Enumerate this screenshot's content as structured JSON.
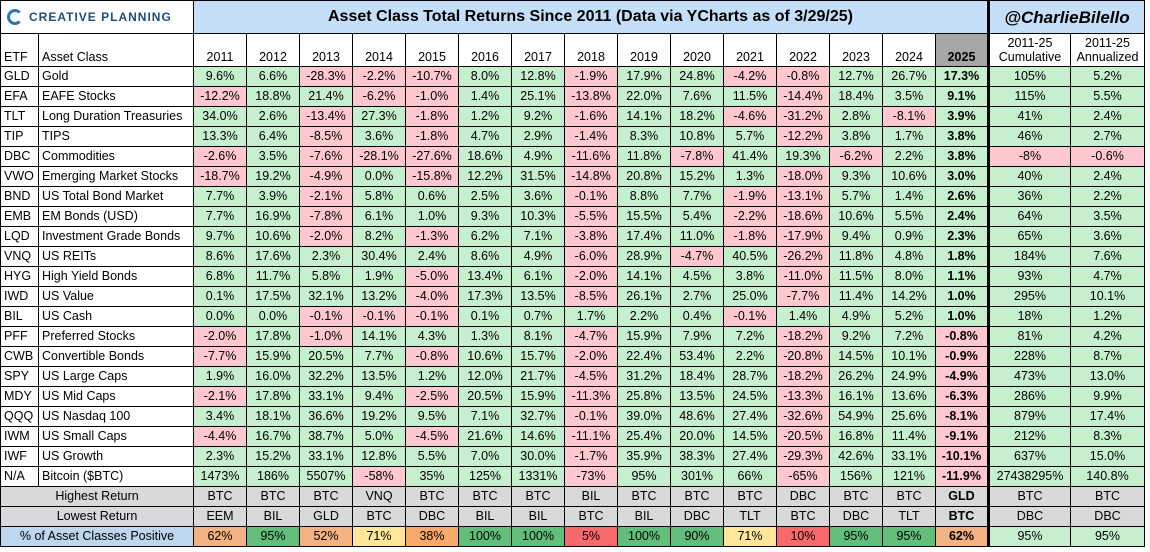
{
  "logo_text": "CREATIVE PLANNING",
  "title": "Asset Class Total Returns Since 2011 (Data via YCharts as of 3/29/25)",
  "handle": "@CharlieBilello",
  "headers": {
    "etf": "ETF",
    "asset_class": "Asset Class",
    "years": [
      "2011",
      "2012",
      "2013",
      "2014",
      "2015",
      "2016",
      "2017",
      "2018",
      "2019",
      "2020",
      "2021",
      "2022",
      "2023",
      "2024",
      "2025"
    ],
    "cumulative": [
      "2011-25",
      "Cumulative"
    ],
    "annualized": [
      "2011-25",
      "Annualized"
    ]
  },
  "chart_data": {
    "type": "table",
    "title": "Asset Class Total Returns Since 2011 (Data via YCharts as of 3/29/25)",
    "columns": [
      "ETF",
      "Asset Class",
      "2011",
      "2012",
      "2013",
      "2014",
      "2015",
      "2016",
      "2017",
      "2018",
      "2019",
      "2020",
      "2021",
      "2022",
      "2023",
      "2024",
      "2025",
      "2011-25 Cumulative",
      "2011-25 Annualized"
    ],
    "rows": [
      [
        "GLD",
        "Gold",
        "9.6%",
        "6.6%",
        "-28.3%",
        "-2.2%",
        "-10.7%",
        "8.0%",
        "12.8%",
        "-1.9%",
        "17.9%",
        "24.8%",
        "-4.2%",
        "-0.8%",
        "12.7%",
        "26.7%",
        "17.3%",
        "105%",
        "5.2%"
      ],
      [
        "EFA",
        "EAFE Stocks",
        "-12.2%",
        "18.8%",
        "21.4%",
        "-6.2%",
        "-1.0%",
        "1.4%",
        "25.1%",
        "-13.8%",
        "22.0%",
        "7.6%",
        "11.5%",
        "-14.4%",
        "18.4%",
        "3.5%",
        "9.1%",
        "115%",
        "5.5%"
      ],
      [
        "TLT",
        "Long Duration Treasuries",
        "34.0%",
        "2.6%",
        "-13.4%",
        "27.3%",
        "-1.8%",
        "1.2%",
        "9.2%",
        "-1.6%",
        "14.1%",
        "18.2%",
        "-4.6%",
        "-31.2%",
        "2.8%",
        "-8.1%",
        "3.9%",
        "41%",
        "2.4%"
      ],
      [
        "TIP",
        "TIPS",
        "13.3%",
        "6.4%",
        "-8.5%",
        "3.6%",
        "-1.8%",
        "4.7%",
        "2.9%",
        "-1.4%",
        "8.3%",
        "10.8%",
        "5.7%",
        "-12.2%",
        "3.8%",
        "1.7%",
        "3.8%",
        "46%",
        "2.7%"
      ],
      [
        "DBC",
        "Commodities",
        "-2.6%",
        "3.5%",
        "-7.6%",
        "-28.1%",
        "-27.6%",
        "18.6%",
        "4.9%",
        "-11.6%",
        "11.8%",
        "-7.8%",
        "41.4%",
        "19.3%",
        "-6.2%",
        "2.2%",
        "3.8%",
        "-8%",
        "-0.6%"
      ],
      [
        "VWO",
        "Emerging Market Stocks",
        "-18.7%",
        "19.2%",
        "-4.9%",
        "0.0%",
        "-15.8%",
        "12.2%",
        "31.5%",
        "-14.8%",
        "20.8%",
        "15.2%",
        "1.3%",
        "-18.0%",
        "9.3%",
        "10.6%",
        "3.0%",
        "40%",
        "2.4%"
      ],
      [
        "BND",
        "US Total Bond Market",
        "7.7%",
        "3.9%",
        "-2.1%",
        "5.8%",
        "0.6%",
        "2.5%",
        "3.6%",
        "-0.1%",
        "8.8%",
        "7.7%",
        "-1.9%",
        "-13.1%",
        "5.7%",
        "1.4%",
        "2.6%",
        "36%",
        "2.2%"
      ],
      [
        "EMB",
        "EM Bonds (USD)",
        "7.7%",
        "16.9%",
        "-7.8%",
        "6.1%",
        "1.0%",
        "9.3%",
        "10.3%",
        "-5.5%",
        "15.5%",
        "5.4%",
        "-2.2%",
        "-18.6%",
        "10.6%",
        "5.5%",
        "2.4%",
        "64%",
        "3.5%"
      ],
      [
        "LQD",
        "Investment Grade Bonds",
        "9.7%",
        "10.6%",
        "-2.0%",
        "8.2%",
        "-1.3%",
        "6.2%",
        "7.1%",
        "-3.8%",
        "17.4%",
        "11.0%",
        "-1.8%",
        "-17.9%",
        "9.4%",
        "0.9%",
        "2.3%",
        "65%",
        "3.6%"
      ],
      [
        "VNQ",
        "US REITs",
        "8.6%",
        "17.6%",
        "2.3%",
        "30.4%",
        "2.4%",
        "8.6%",
        "4.9%",
        "-6.0%",
        "28.9%",
        "-4.7%",
        "40.5%",
        "-26.2%",
        "11.8%",
        "4.8%",
        "1.8%",
        "184%",
        "7.6%"
      ],
      [
        "HYG",
        "High Yield Bonds",
        "6.8%",
        "11.7%",
        "5.8%",
        "1.9%",
        "-5.0%",
        "13.4%",
        "6.1%",
        "-2.0%",
        "14.1%",
        "4.5%",
        "3.8%",
        "-11.0%",
        "11.5%",
        "8.0%",
        "1.1%",
        "93%",
        "4.7%"
      ],
      [
        "IWD",
        "US Value",
        "0.1%",
        "17.5%",
        "32.1%",
        "13.2%",
        "-4.0%",
        "17.3%",
        "13.5%",
        "-8.5%",
        "26.1%",
        "2.7%",
        "25.0%",
        "-7.7%",
        "11.4%",
        "14.2%",
        "1.0%",
        "295%",
        "10.1%"
      ],
      [
        "BIL",
        "US Cash",
        "0.0%",
        "0.0%",
        "-0.1%",
        "-0.1%",
        "-0.1%",
        "0.1%",
        "0.7%",
        "1.7%",
        "2.2%",
        "0.4%",
        "-0.1%",
        "1.4%",
        "4.9%",
        "5.2%",
        "1.0%",
        "18%",
        "1.2%"
      ],
      [
        "PFF",
        "Preferred Stocks",
        "-2.0%",
        "17.8%",
        "-1.0%",
        "14.1%",
        "4.3%",
        "1.3%",
        "8.1%",
        "-4.7%",
        "15.9%",
        "7.9%",
        "7.2%",
        "-18.2%",
        "9.2%",
        "7.2%",
        "-0.8%",
        "81%",
        "4.2%"
      ],
      [
        "CWB",
        "Convertible Bonds",
        "-7.7%",
        "15.9%",
        "20.5%",
        "7.7%",
        "-0.8%",
        "10.6%",
        "15.7%",
        "-2.0%",
        "22.4%",
        "53.4%",
        "2.2%",
        "-20.8%",
        "14.5%",
        "10.1%",
        "-0.9%",
        "228%",
        "8.7%"
      ],
      [
        "SPY",
        "US Large Caps",
        "1.9%",
        "16.0%",
        "32.2%",
        "13.5%",
        "1.2%",
        "12.0%",
        "21.7%",
        "-4.5%",
        "31.2%",
        "18.4%",
        "28.7%",
        "-18.2%",
        "26.2%",
        "24.9%",
        "-4.9%",
        "473%",
        "13.0%"
      ],
      [
        "MDY",
        "US Mid Caps",
        "-2.1%",
        "17.8%",
        "33.1%",
        "9.4%",
        "-2.5%",
        "20.5%",
        "15.9%",
        "-11.3%",
        "25.8%",
        "13.5%",
        "24.5%",
        "-13.3%",
        "16.1%",
        "13.6%",
        "-6.3%",
        "286%",
        "9.9%"
      ],
      [
        "QQQ",
        "US Nasdaq 100",
        "3.4%",
        "18.1%",
        "36.6%",
        "19.2%",
        "9.5%",
        "7.1%",
        "32.7%",
        "-0.1%",
        "39.0%",
        "48.6%",
        "27.4%",
        "-32.6%",
        "54.9%",
        "25.6%",
        "-8.1%",
        "879%",
        "17.4%"
      ],
      [
        "IWM",
        "US Small Caps",
        "-4.4%",
        "16.7%",
        "38.7%",
        "5.0%",
        "-4.5%",
        "21.6%",
        "14.6%",
        "-11.1%",
        "25.4%",
        "20.0%",
        "14.5%",
        "-20.5%",
        "16.8%",
        "11.4%",
        "-9.1%",
        "212%",
        "8.3%"
      ],
      [
        "IWF",
        "US Growth",
        "2.3%",
        "15.2%",
        "33.1%",
        "12.8%",
        "5.5%",
        "7.0%",
        "30.0%",
        "-1.7%",
        "35.9%",
        "38.3%",
        "27.4%",
        "-29.3%",
        "42.6%",
        "33.1%",
        "-10.1%",
        "637%",
        "15.0%"
      ],
      [
        "N/A",
        "Bitcoin ($BTC)",
        "1473%",
        "186%",
        "5507%",
        "-58%",
        "35%",
        "125%",
        "1331%",
        "-73%",
        "95%",
        "301%",
        "66%",
        "-65%",
        "156%",
        "121%",
        "-11.9%",
        "27438295%",
        "140.8%"
      ]
    ],
    "footer": [
      {
        "label": "Highest Return",
        "values": [
          "BTC",
          "BTC",
          "BTC",
          "VNQ",
          "BTC",
          "BTC",
          "BTC",
          "BIL",
          "BTC",
          "BTC",
          "BTC",
          "DBC",
          "BTC",
          "BTC",
          "GLD",
          "BTC",
          "BTC"
        ]
      },
      {
        "label": "Lowest Return",
        "values": [
          "EEM",
          "BIL",
          "GLD",
          "BTC",
          "DBC",
          "BIL",
          "BIL",
          "BTC",
          "BIL",
          "DBC",
          "TLT",
          "BTC",
          "DBC",
          "TLT",
          "BTC",
          "DBC",
          "DBC"
        ]
      },
      {
        "label": "% of Asset Classes Positive",
        "values": [
          "62%",
          "95%",
          "52%",
          "71%",
          "38%",
          "100%",
          "100%",
          "5%",
          "100%",
          "90%",
          "71%",
          "10%",
          "95%",
          "95%",
          "62%",
          "95%",
          "95%"
        ]
      }
    ]
  },
  "colors": {
    "positive_bg": "#c6efce",
    "negative_bg": "#ffc7ce",
    "header_bg": "#c5dff8",
    "highlight_2025": "#a6a6a6"
  }
}
